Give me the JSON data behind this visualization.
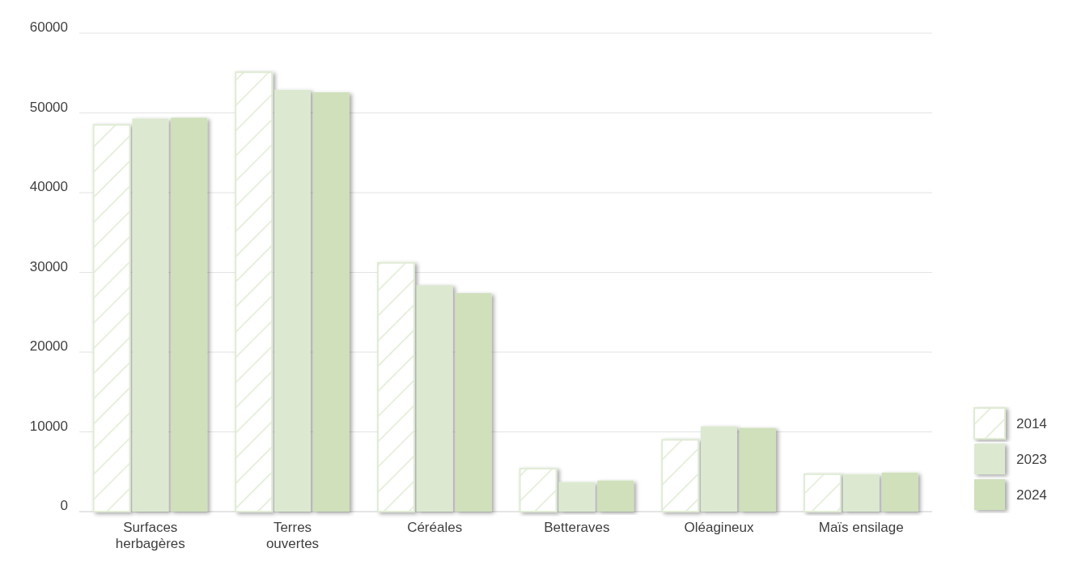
{
  "chart_data": {
    "type": "bar",
    "categories": [
      "Surfaces herbagères",
      "Terres ouvertes",
      "Céréales",
      "Betteraves",
      "Oléagineux",
      "Maïs ensilage"
    ],
    "series": [
      {
        "name": "2014",
        "color": "#dfebd3",
        "values": [
          48500,
          55100,
          31200,
          5400,
          9000,
          4700
        ]
      },
      {
        "name": "2023",
        "color": "#dce9d0",
        "values": [
          49300,
          52900,
          28400,
          3700,
          10700,
          4700
        ]
      },
      {
        "name": "2024",
        "color": "#cfe0bb",
        "values": [
          49400,
          52600,
          27400,
          3900,
          10500,
          4900
        ]
      }
    ],
    "ylim": [
      0,
      60000
    ],
    "yticks": [
      0,
      10000,
      20000,
      30000,
      40000,
      50000,
      60000
    ],
    "grid": "y",
    "legend": "right"
  }
}
